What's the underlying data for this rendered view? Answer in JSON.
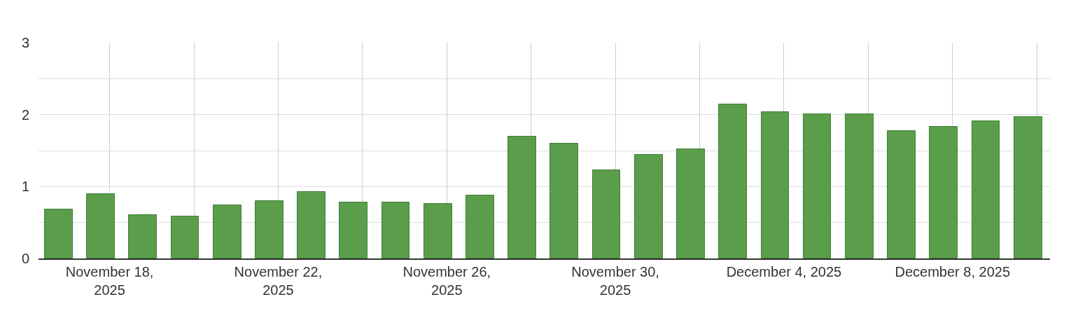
{
  "chart_data": {
    "type": "bar",
    "color": "#5a9e4b",
    "x": [
      "2025-11-16T19:00",
      "2025-11-17T19:00",
      "2025-11-18T19:00",
      "2025-11-19T19:00",
      "2025-11-20T19:00",
      "2025-11-21T19:00",
      "2025-11-22T19:00",
      "2025-11-23T19:00",
      "2025-11-24T19:00",
      "2025-11-25T19:00",
      "2025-11-26T19:00",
      "2025-11-27T19:00",
      "2025-11-28T19:00",
      "2025-11-29T19:00",
      "2025-11-30T19:00",
      "2025-12-01T19:00",
      "2025-12-02T19:00",
      "2025-12-03T19:00",
      "2025-12-04T19:00",
      "2025-12-05T19:00",
      "2025-12-06T19:00",
      "2025-12-07T19:00",
      "2025-12-08T19:00",
      "2025-12-09T19:00"
    ],
    "values": [
      0.68,
      0.9,
      0.6,
      0.58,
      0.74,
      0.8,
      0.93,
      0.78,
      0.78,
      0.76,
      0.88,
      1.69,
      1.6,
      1.23,
      1.44,
      1.52,
      2.14,
      2.04,
      2.01,
      2.01,
      1.77,
      1.83,
      1.91,
      1.97
    ],
    "xlim": [
      "2025-11-16T07:30",
      "2025-12-10T07:30"
    ],
    "xticks": [
      {
        "value": "2025-11-18",
        "label": "November 18, 2025"
      },
      {
        "value": "2025-11-20",
        "label": null
      },
      {
        "value": "2025-11-22",
        "label": "November 22, 2025"
      },
      {
        "value": "2025-11-24",
        "label": null
      },
      {
        "value": "2025-11-26",
        "label": "November 26, 2025"
      },
      {
        "value": "2025-11-28",
        "label": null
      },
      {
        "value": "2025-11-30",
        "label": "November 30, 2025"
      },
      {
        "value": "2025-12-02",
        "label": null
      },
      {
        "value": "2025-12-04",
        "label": "December 4, 2025"
      },
      {
        "value": "2025-12-06",
        "label": null
      },
      {
        "value": "2025-12-08",
        "label": "December 8, 2025"
      },
      {
        "value": "2025-12-10",
        "label": null
      }
    ],
    "ylim": [
      0,
      3
    ],
    "yticks": [
      0,
      {
        "value": 0.5,
        "label": null
      },
      1,
      {
        "value": 1.5,
        "label": null
      },
      2,
      {
        "value": 2.5,
        "label": null
      },
      3
    ],
    "grid": true
  }
}
